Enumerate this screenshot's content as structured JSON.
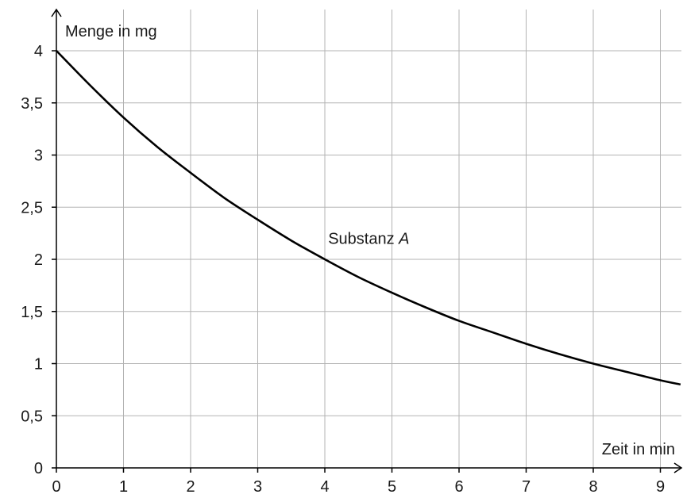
{
  "chart_data": {
    "type": "line",
    "title": "",
    "xlabel": "Zeit in min",
    "ylabel": "Menge in mg",
    "xlim": [
      0,
      9.3
    ],
    "ylim": [
      0,
      4.4
    ],
    "x_ticks": [
      0,
      1,
      2,
      3,
      4,
      5,
      6,
      7,
      8,
      9
    ],
    "y_ticks": [
      0,
      0.5,
      1,
      1.5,
      2,
      2.5,
      3,
      3.5,
      4
    ],
    "x_tick_labels": [
      "0",
      "1",
      "2",
      "3",
      "4",
      "5",
      "6",
      "7",
      "8",
      "9"
    ],
    "y_tick_labels": [
      "0",
      "0,5",
      "1",
      "1,5",
      "2",
      "2,5",
      "3",
      "3,5",
      "4"
    ],
    "grid": true,
    "series": [
      {
        "name": "Substanz A",
        "x": [
          0,
          0.5,
          1,
          1.5,
          2,
          2.5,
          3,
          3.5,
          4,
          4.5,
          5,
          5.5,
          6,
          6.5,
          7,
          7.5,
          8,
          8.5,
          9,
          9.3
        ],
        "y": [
          4,
          3.67,
          3.36,
          3.08,
          2.83,
          2.59,
          2.38,
          2.18,
          2,
          1.83,
          1.68,
          1.54,
          1.41,
          1.3,
          1.19,
          1.09,
          1,
          0.92,
          0.84,
          0.8
        ]
      }
    ],
    "annotations": [
      {
        "text": "Substanz ",
        "italic_part": "A",
        "x": 4.05,
        "y": 2.2
      }
    ]
  }
}
